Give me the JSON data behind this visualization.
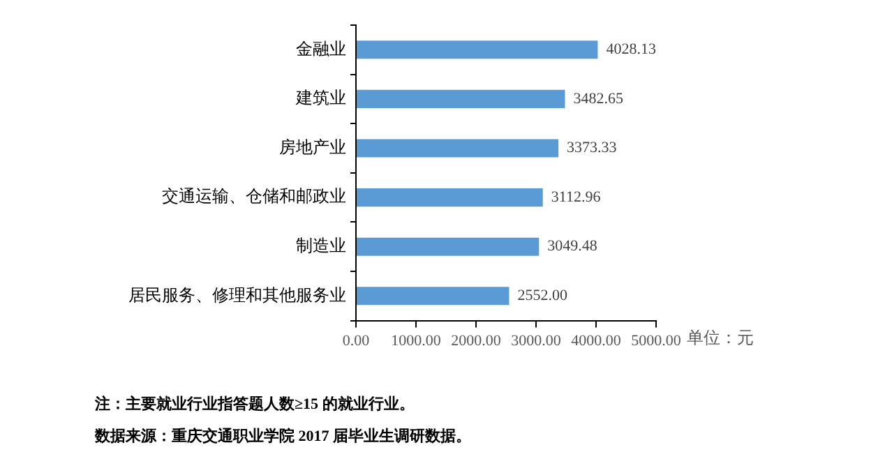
{
  "chart_data": {
    "type": "bar",
    "orientation": "horizontal",
    "categories": [
      "金融业",
      "建筑业",
      "房地产业",
      "交通运输、仓储和邮政业",
      "制造业",
      "居民服务、修理和其他服务业"
    ],
    "values": [
      4028.13,
      3482.65,
      3373.33,
      3112.96,
      3049.48,
      2552.0
    ],
    "color": "#5b9bd5",
    "value_labels": [
      "4028.13",
      "3482.65",
      "3373.33",
      "3112.96",
      "3049.48",
      "2552.00"
    ],
    "xlabel": "单位：元",
    "xlim": [
      0,
      5000
    ],
    "xticks": [
      {
        "value": 0,
        "label": "0.00"
      },
      {
        "value": 1000,
        "label": "1000.00"
      },
      {
        "value": 2000,
        "label": "2000.00"
      },
      {
        "value": 3000,
        "label": "3000.00"
      },
      {
        "value": 4000,
        "label": "4000.00"
      },
      {
        "value": 5000,
        "label": "5000.00"
      }
    ],
    "grid": false,
    "legend": false,
    "annotations": [
      "注：主要就业行业指答题人数≥15 的就业行业。",
      "数据来源：重庆交通职业学院 2017 届毕业生调研数据。"
    ]
  }
}
